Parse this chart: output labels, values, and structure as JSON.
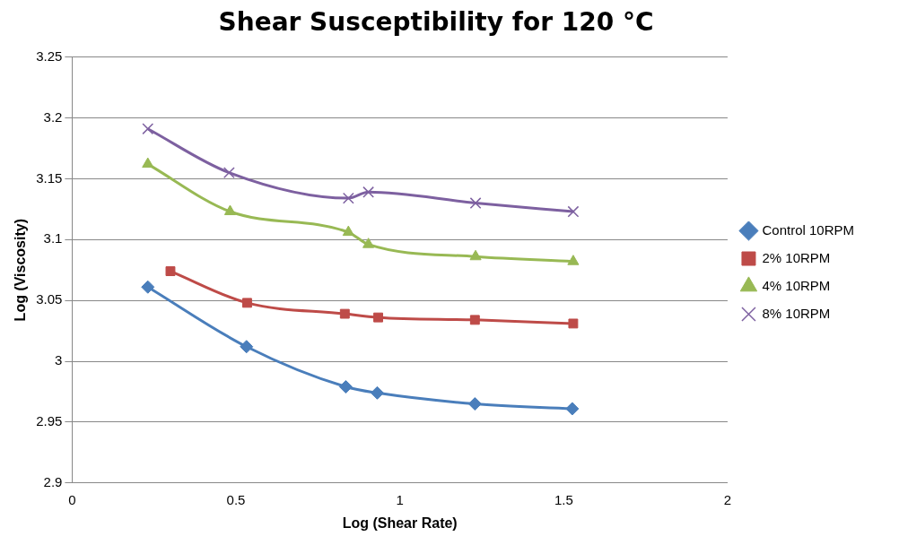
{
  "chart_data": {
    "type": "line",
    "title": "Shear Susceptibility for 120 °C",
    "xlabel": "Log (Shear Rate)",
    "ylabel": "Log (Viscosity)",
    "xlim": [
      0,
      2
    ],
    "xticks": [
      0,
      0.5,
      1,
      1.5,
      2
    ],
    "ylim": [
      2.9,
      3.25
    ],
    "yticks": [
      2.9,
      2.95,
      3,
      3.05,
      3.1,
      3.15,
      3.2,
      3.25
    ],
    "grid": "y",
    "legend": "right",
    "series": [
      {
        "name": "Control 10RPM",
        "color": "#4a7ebb",
        "marker": "diamond",
        "x": [
          0.231,
          0.532,
          0.835,
          0.931,
          1.229,
          1.526
        ],
        "values": [
          3.061,
          3.012,
          2.979,
          2.974,
          2.965,
          2.961
        ]
      },
      {
        "name": "2% 10RPM",
        "color": "#be4b48",
        "marker": "square",
        "x": [
          0.3,
          0.534,
          0.832,
          0.934,
          1.229,
          1.529
        ],
        "values": [
          3.074,
          3.048,
          3.039,
          3.036,
          3.034,
          3.031
        ]
      },
      {
        "name": "4% 10RPM",
        "color": "#98b954",
        "marker": "triangle",
        "x": [
          0.231,
          0.482,
          0.843,
          0.904,
          1.231,
          1.529
        ],
        "values": [
          3.162,
          3.123,
          3.106,
          3.096,
          3.086,
          3.082
        ]
      },
      {
        "name": "8% 10RPM",
        "color": "#7d60a0",
        "marker": "cross",
        "x": [
          0.231,
          0.479,
          0.843,
          0.904,
          1.231,
          1.529
        ],
        "values": [
          3.191,
          3.155,
          3.134,
          3.139,
          3.13,
          3.123
        ]
      }
    ]
  }
}
